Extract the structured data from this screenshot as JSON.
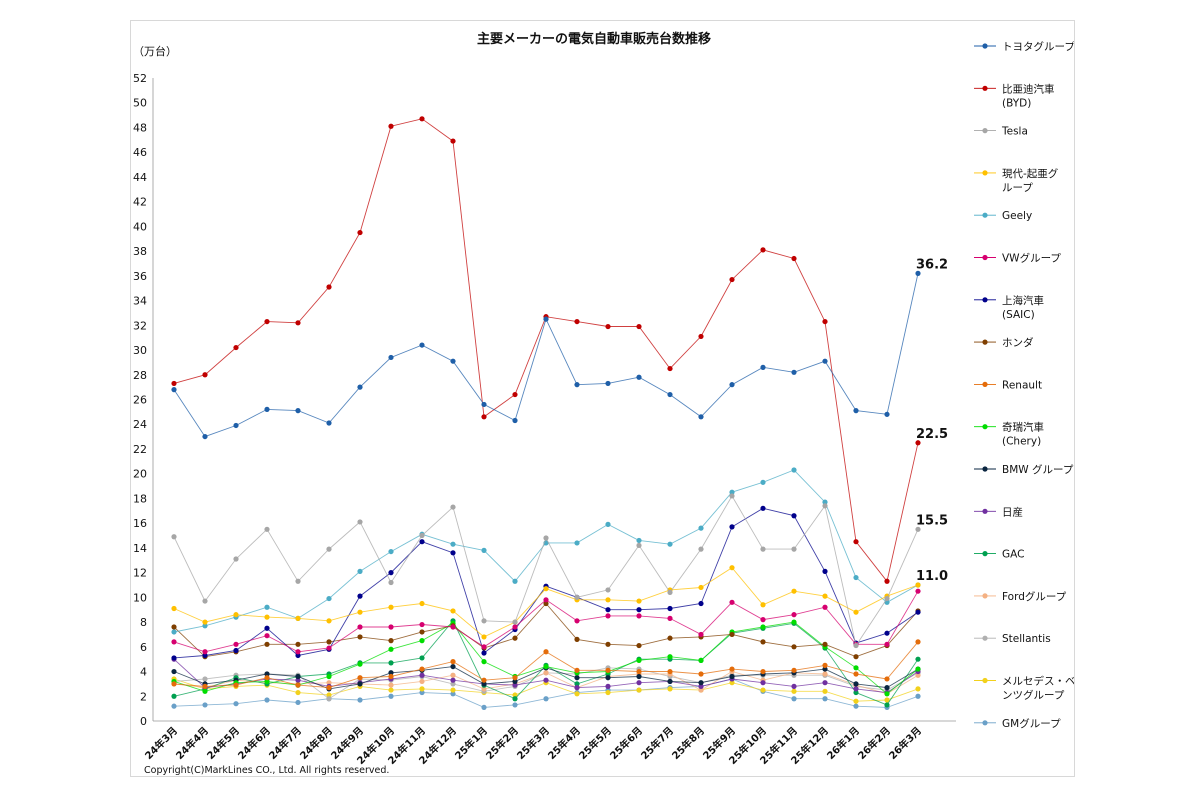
{
  "chart_data": {
    "type": "line",
    "title": "主要メーカーの電気自動車販売台数推移",
    "unit_label": "（万台）",
    "copyright": "Copyright(C)MarkLines CO., Ltd. All rights reserved.",
    "ylim": [
      0,
      52
    ],
    "yticks": [
      0,
      2,
      4,
      6,
      8,
      10,
      12,
      14,
      16,
      18,
      20,
      22,
      24,
      26,
      28,
      30,
      32,
      34,
      36,
      38,
      40,
      42,
      44,
      46,
      48,
      50,
      52
    ],
    "grid": false,
    "legend_position": "right",
    "categories": [
      "24年3月",
      "24年4月",
      "24年5月",
      "24年6月",
      "24年7月",
      "24年8月",
      "24年9月",
      "24年10月",
      "24年11月",
      "24年12月",
      "25年1月",
      "25年2月",
      "25年3月",
      "25年4月",
      "25年5月",
      "25年6月",
      "25年7月",
      "25年8月",
      "25年9月",
      "25年10月",
      "25年11月",
      "25年12月",
      "26年1月",
      "26年2月",
      "26年3月"
    ],
    "series": [
      {
        "name": "トヨタグループ",
        "color": "#1f5fa8",
        "values": [
          26.8,
          23.0,
          23.9,
          25.2,
          25.1,
          24.1,
          27.0,
          29.4,
          30.4,
          29.1,
          25.6,
          24.3,
          32.5,
          27.2,
          27.3,
          27.8,
          26.4,
          24.6,
          27.2,
          28.6,
          28.2,
          29.1,
          25.1,
          24.8,
          36.2
        ]
      },
      {
        "name": "比亜迪汽車\n(BYD)",
        "color": "#c00000",
        "values": [
          27.3,
          28.0,
          30.2,
          32.3,
          32.2,
          35.1,
          39.5,
          48.1,
          48.7,
          46.9,
          24.6,
          26.4,
          32.7,
          32.3,
          31.9,
          31.9,
          28.5,
          31.1,
          35.7,
          38.1,
          37.4,
          32.3,
          14.5,
          11.3,
          22.5
        ]
      },
      {
        "name": "Tesla",
        "color": "#a6a6a6",
        "values": [
          14.9,
          9.7,
          13.1,
          15.5,
          11.3,
          13.9,
          16.1,
          11.2,
          15.0,
          17.3,
          8.1,
          8.0,
          14.8,
          10.0,
          10.6,
          14.2,
          10.4,
          13.9,
          18.2,
          13.9,
          13.9,
          17.4,
          6.1,
          9.9,
          15.5
        ]
      },
      {
        "name": "現代-起亜グ\nループ",
        "color": "#ffc000",
        "values": [
          9.1,
          8.0,
          8.6,
          8.4,
          8.3,
          8.1,
          8.8,
          9.2,
          9.5,
          8.9,
          6.8,
          8.0,
          10.7,
          9.8,
          9.8,
          9.7,
          10.6,
          10.8,
          12.4,
          9.4,
          10.5,
          10.1,
          8.8,
          10.1,
          11.0
        ]
      },
      {
        "name": "Geely",
        "color": "#4bacc6",
        "values": [
          7.2,
          7.7,
          8.4,
          9.2,
          8.3,
          9.9,
          12.1,
          13.7,
          15.1,
          14.3,
          13.8,
          11.3,
          14.4,
          14.4,
          15.9,
          14.6,
          14.3,
          15.6,
          18.5,
          19.3,
          20.3,
          17.7,
          11.6,
          9.6,
          11.0
        ]
      },
      {
        "name": "VWグループ",
        "color": "#d6006f",
        "values": [
          6.4,
          5.6,
          6.2,
          6.9,
          5.6,
          5.9,
          7.6,
          7.6,
          7.8,
          7.6,
          6.0,
          7.6,
          9.8,
          8.1,
          8.5,
          8.5,
          8.3,
          7.0,
          9.6,
          8.2,
          8.6,
          9.2,
          6.2,
          6.2,
          10.5
        ]
      },
      {
        "name": "上海汽車\n(SAIC)",
        "color": "#00008b",
        "values": [
          5.1,
          5.3,
          5.7,
          7.5,
          5.3,
          5.8,
          10.1,
          12.0,
          14.5,
          13.6,
          5.5,
          7.4,
          10.9,
          10.0,
          9.0,
          9.0,
          9.1,
          9.5,
          15.7,
          17.2,
          16.6,
          12.1,
          6.3,
          7.1,
          8.8
        ]
      },
      {
        "name": "ホンダ",
        "color": "#7f3f00",
        "values": [
          7.6,
          5.2,
          5.6,
          6.2,
          6.2,
          6.4,
          6.8,
          6.5,
          7.2,
          7.7,
          5.9,
          6.7,
          9.5,
          6.6,
          6.2,
          6.1,
          6.7,
          6.8,
          7.0,
          6.4,
          6.0,
          6.2,
          5.2,
          6.1,
          8.9
        ]
      },
      {
        "name": "Renault",
        "color": "#e46c0a",
        "values": [
          3.0,
          2.8,
          2.9,
          3.5,
          2.9,
          2.7,
          3.5,
          3.6,
          4.2,
          4.8,
          3.3,
          3.5,
          5.6,
          4.1,
          4.1,
          4.0,
          4.0,
          3.8,
          4.2,
          4.0,
          4.1,
          4.5,
          3.8,
          3.4,
          6.4
        ]
      },
      {
        "name": "奇瑞汽車\n(Chery)",
        "color": "#00dd00",
        "values": [
          3.2,
          2.4,
          3.1,
          3.2,
          2.9,
          3.6,
          4.6,
          5.8,
          6.5,
          7.9,
          4.8,
          3.6,
          4.4,
          3.9,
          4.0,
          4.9,
          5.2,
          4.9,
          7.2,
          7.6,
          8.0,
          6.0,
          4.3,
          2.2,
          4.2
        ]
      },
      {
        "name": "BMW グループ",
        "color": "#0a2540",
        "values": [
          4.0,
          3.0,
          3.3,
          3.8,
          3.6,
          2.6,
          3.0,
          3.9,
          4.1,
          4.4,
          3.0,
          3.2,
          4.3,
          3.5,
          3.5,
          3.6,
          3.2,
          3.1,
          3.6,
          3.8,
          3.9,
          4.2,
          3.0,
          2.7,
          4.2
        ]
      },
      {
        "name": "日産",
        "color": "#7030a0",
        "values": [
          5.0,
          2.7,
          3.0,
          3.4,
          3.3,
          2.8,
          3.1,
          3.4,
          3.7,
          3.3,
          3.0,
          2.9,
          3.3,
          2.7,
          2.8,
          3.1,
          3.2,
          2.8,
          3.4,
          3.1,
          2.8,
          3.1,
          2.6,
          2.3,
          4.0
        ]
      },
      {
        "name": "GAC",
        "color": "#00a050",
        "values": [
          2.0,
          2.6,
          3.5,
          3.0,
          3.6,
          3.8,
          4.7,
          4.7,
          5.1,
          8.1,
          2.9,
          1.8,
          4.5,
          3.0,
          3.8,
          5.0,
          5.0,
          4.9,
          7.1,
          7.5,
          7.9,
          5.9,
          2.3,
          1.3,
          5.0
        ]
      },
      {
        "name": "Fordグループ",
        "color": "#f4b183",
        "values": [
          3.0,
          2.7,
          3.3,
          3.1,
          3.0,
          3.1,
          3.0,
          2.9,
          3.2,
          3.7,
          2.6,
          3.0,
          3.9,
          2.7,
          3.6,
          3.8,
          3.8,
          2.5,
          4.0,
          3.3,
          3.9,
          3.8,
          2.9,
          2.2,
          3.7
        ]
      },
      {
        "name": "Stellantis",
        "color": "#b0b0b0",
        "values": [
          3.2,
          3.4,
          3.7,
          3.8,
          3.7,
          1.8,
          3.4,
          3.3,
          3.6,
          3.0,
          2.4,
          2.8,
          3.9,
          3.8,
          4.3,
          4.2,
          3.6,
          3.1,
          3.7,
          3.7,
          3.7,
          3.7,
          2.8,
          2.5,
          3.9
        ]
      },
      {
        "name": "メルセデス・ベ\nンツグループ",
        "color": "#f2d11c",
        "values": [
          3.4,
          2.6,
          2.8,
          2.9,
          2.3,
          2.1,
          2.8,
          2.5,
          2.6,
          2.5,
          2.3,
          2.1,
          3.1,
          2.2,
          2.3,
          2.5,
          2.6,
          2.5,
          3.1,
          2.5,
          2.4,
          2.4,
          1.6,
          1.7,
          2.6
        ]
      },
      {
        "name": "GMグループ",
        "color": "#6aa0c8",
        "values": [
          1.2,
          1.3,
          1.4,
          1.7,
          1.5,
          1.8,
          1.7,
          2.0,
          2.3,
          2.2,
          1.1,
          1.3,
          1.8,
          2.3,
          2.5,
          2.5,
          2.7,
          2.8,
          3.4,
          2.4,
          1.8,
          1.8,
          1.2,
          1.1,
          2.0
        ]
      }
    ],
    "data_labels": [
      {
        "series": "トヨタグループ",
        "category": "26年3月",
        "text": "36.2"
      },
      {
        "series": "比亜迪汽車\n(BYD)",
        "category": "26年3月",
        "text": "22.5"
      },
      {
        "series": "Tesla",
        "category": "26年3月",
        "text": "15.5"
      },
      {
        "series": "現代-起亜グ\nループ",
        "category": "26年3月",
        "text": "11.0"
      }
    ]
  }
}
